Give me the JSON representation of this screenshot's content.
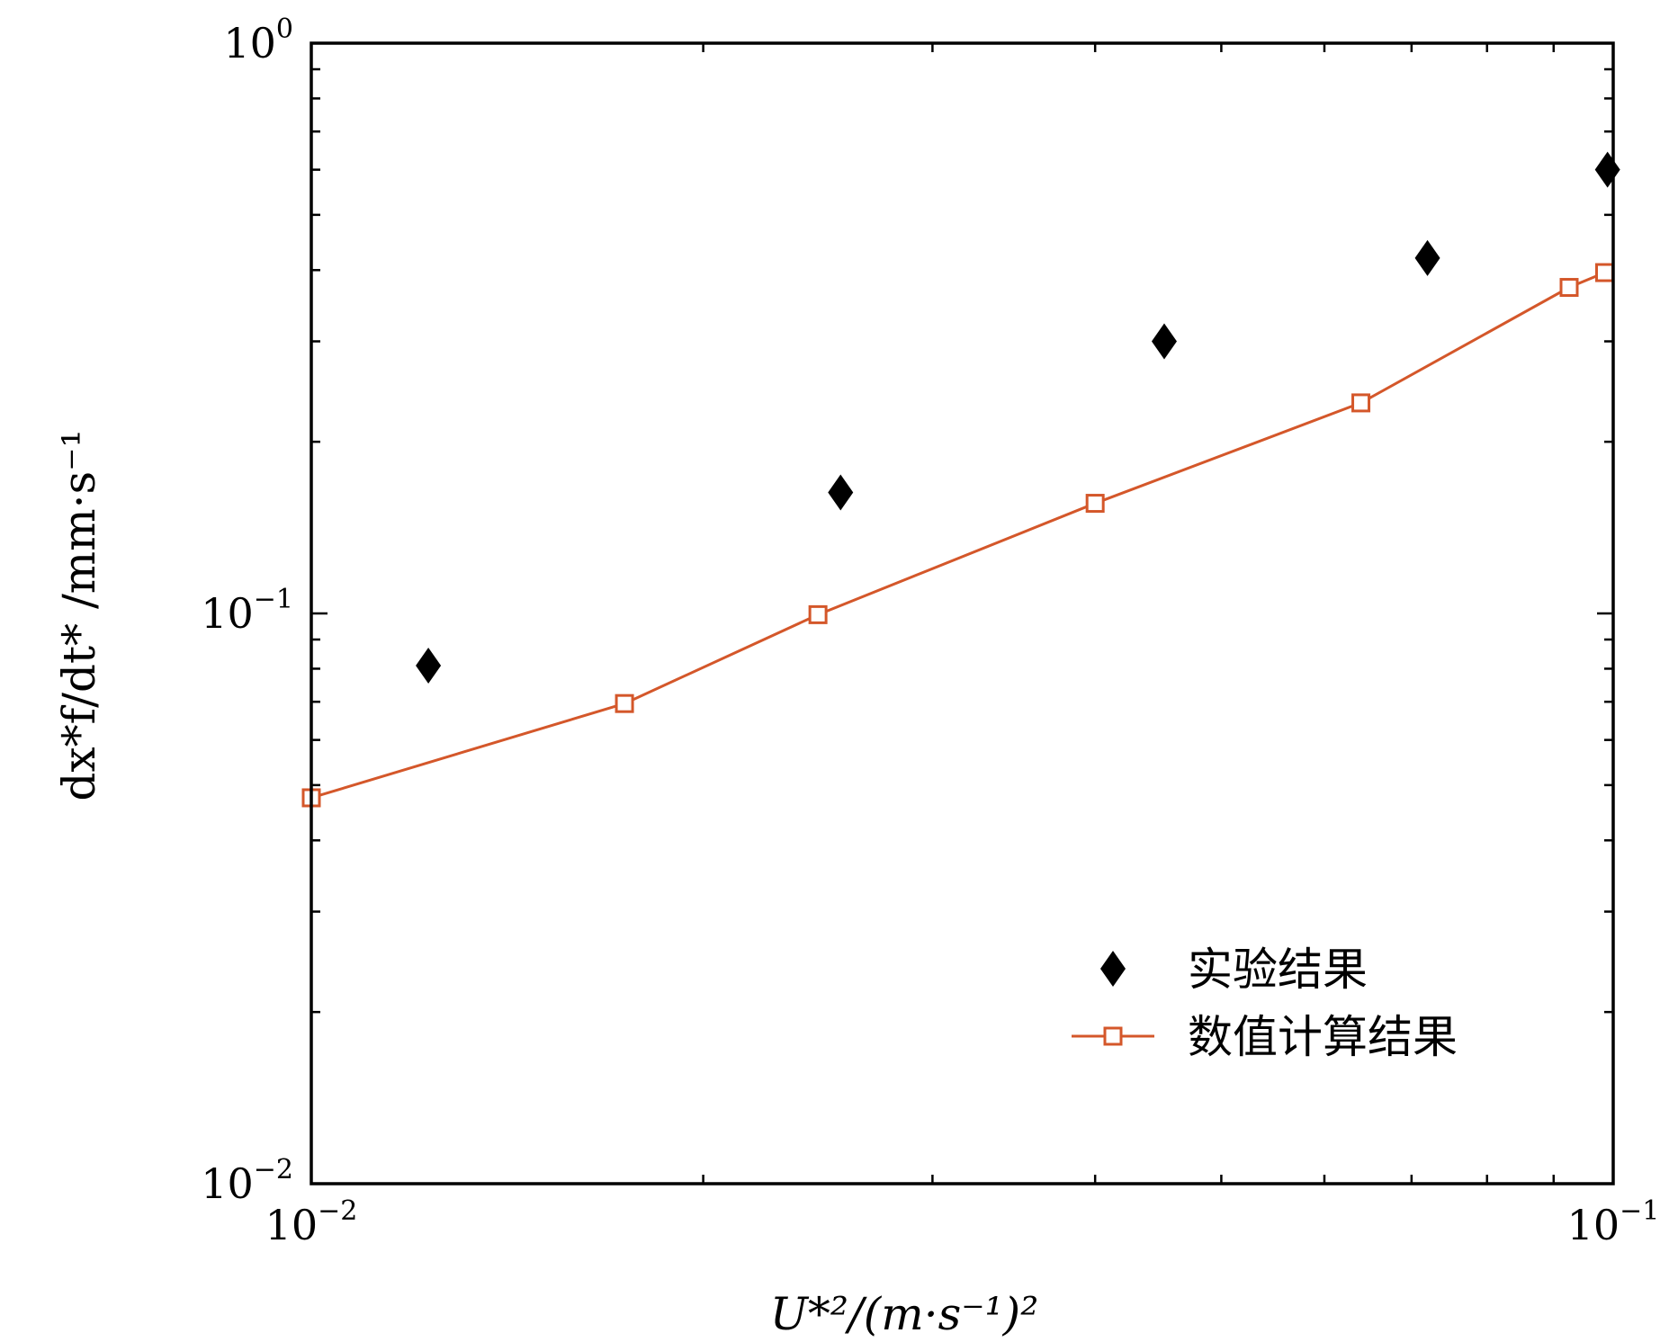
{
  "chart_data": {
    "type": "scatter",
    "x_scale": "log",
    "y_scale": "log",
    "xlim": [
      0.01,
      0.1
    ],
    "ylim": [
      0.01,
      1
    ],
    "x_ticks": [
      {
        "value": 0.01,
        "base": "10",
        "exp": "−2"
      },
      {
        "value": 0.1,
        "base": "10",
        "exp": "−1"
      }
    ],
    "y_ticks": [
      {
        "value": 0.01,
        "base": "10",
        "exp": "−2"
      },
      {
        "value": 0.1,
        "base": "10",
        "exp": "−1"
      },
      {
        "value": 1,
        "base": "10",
        "exp": "0"
      }
    ],
    "xlabel": "U*²/(m·s⁻¹)²",
    "ylabel": "dx*f/dt* /mm·s⁻¹",
    "grid": false,
    "legend_position": "lower-right",
    "series": [
      {
        "name": "实验结果",
        "marker": "diamond",
        "line": false,
        "color": "#000000",
        "x": [
          0.0123,
          0.0255,
          0.0452,
          0.072,
          0.099
        ],
        "y": [
          0.081,
          0.163,
          0.3,
          0.42,
          0.6
        ]
      },
      {
        "name": "数值计算结果",
        "marker": "square-open",
        "line": true,
        "color": "#d4572a",
        "x": [
          0.01,
          0.0174,
          0.0245,
          0.04,
          0.064,
          0.0925,
          0.0985
        ],
        "y": [
          0.0475,
          0.0695,
          0.0995,
          0.156,
          0.234,
          0.373,
          0.396
        ]
      }
    ]
  }
}
